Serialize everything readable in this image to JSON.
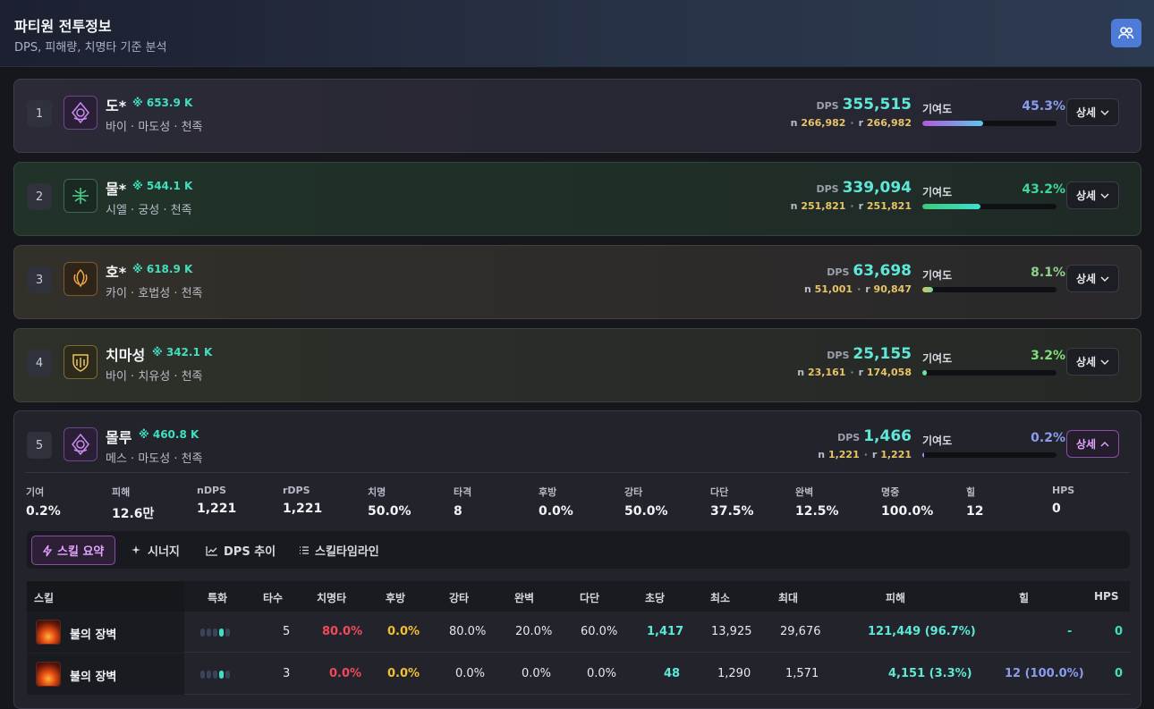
{
  "header": {
    "title": "파티원 전투정보",
    "subtitle": "DPS, 피해량, 치명타 기준 분석",
    "icon": "party-icon"
  },
  "labels": {
    "dps": "DPS",
    "contrib": "기여도",
    "n_prefix": "n",
    "r_prefix": "r",
    "sep": "·"
  },
  "players": [
    {
      "rank": "1",
      "name": "도*",
      "power": "※ 653.9 K",
      "info": "바이 · 마도성 · 천족",
      "dps": "355,515",
      "n": "266,982",
      "r": "266,982",
      "contrib": "45.3%",
      "contrib_value": 0.453,
      "detail": "상세",
      "accent": "#9d6cf0"
    },
    {
      "rank": "2",
      "name": "물*",
      "power": "※ 544.1 K",
      "info": "시엘 · 궁성 · 천족",
      "dps": "339,094",
      "n": "251,821",
      "r": "251,821",
      "contrib": "43.2%",
      "contrib_value": 0.432,
      "detail": "상세",
      "accent": "#3fe0bf"
    },
    {
      "rank": "3",
      "name": "호*",
      "power": "※ 618.9 K",
      "info": "카이 · 호법성 · 천족",
      "dps": "63,698",
      "n": "51,001",
      "r": "90,847",
      "contrib": "8.1%",
      "contrib_value": 0.081,
      "detail": "상세",
      "accent": "#8fd08a"
    },
    {
      "rank": "4",
      "name": "치마성",
      "power": "※ 342.1 K",
      "info": "바이 · 치유성 · 천족",
      "dps": "25,155",
      "n": "23,161",
      "r": "174,058",
      "contrib": "3.2%",
      "contrib_value": 0.032,
      "detail": "상세",
      "accent": "#7fe07a"
    },
    {
      "rank": "5",
      "name": "몰루",
      "power": "※ 460.8 K",
      "info": "메스 · 마도성 · 천족",
      "dps": "1,466",
      "n": "1,221",
      "r": "1,221",
      "contrib": "0.2%",
      "contrib_value": 0.002,
      "detail": "상세",
      "accent": "#8a9cf0"
    }
  ],
  "stats": [
    {
      "k": "기여",
      "v": "0.2%"
    },
    {
      "k": "피해",
      "v": "12.6만"
    },
    {
      "k": "nDPS",
      "v": "1,221"
    },
    {
      "k": "rDPS",
      "v": "1,221"
    },
    {
      "k": "치명",
      "v": "50.0%"
    },
    {
      "k": "타격",
      "v": "8"
    },
    {
      "k": "후방",
      "v": "0.0%"
    },
    {
      "k": "강타",
      "v": "50.0%"
    },
    {
      "k": "다단",
      "v": "37.5%"
    },
    {
      "k": "완벽",
      "v": "12.5%"
    },
    {
      "k": "명중",
      "v": "100.0%"
    },
    {
      "k": "힐",
      "v": "12"
    },
    {
      "k": "HPS",
      "v": "0"
    }
  ],
  "tabs": [
    {
      "label": "스킬 요약",
      "icon": "lightning-icon"
    },
    {
      "label": "시너지",
      "icon": "sparkle-icon"
    },
    {
      "label": "DPS 추이",
      "icon": "chart-icon"
    },
    {
      "label": "스킬타임라인",
      "icon": "list-icon"
    }
  ],
  "table": {
    "headers": [
      "스킬",
      "특화",
      "타수",
      "치명타",
      "후방",
      "강타",
      "완벽",
      "다단",
      "초당",
      "최소",
      "최대",
      "피해",
      "힐",
      "HPS"
    ],
    "rows": [
      {
        "name": "불의 장벽",
        "spec_level": 4,
        "hits": "5",
        "crit": "80.0%",
        "back": "0.0%",
        "strong": "80.0%",
        "perfect": "20.0%",
        "multi": "60.0%",
        "per_sec": "1,417",
        "min": "13,925",
        "max": "29,676",
        "damage": "121,449 (96.7%)",
        "heal": "-",
        "hps": "0"
      },
      {
        "name": "불의 장벽",
        "spec_level": 4,
        "hits": "3",
        "crit": "0.0%",
        "back": "0.0%",
        "strong": "0.0%",
        "perfect": "0.0%",
        "multi": "0.0%",
        "per_sec": "48",
        "min": "1,290",
        "max": "1,571",
        "damage": "4,151 (3.3%)",
        "heal": "12 (100.0%)",
        "hps": "0"
      }
    ]
  }
}
